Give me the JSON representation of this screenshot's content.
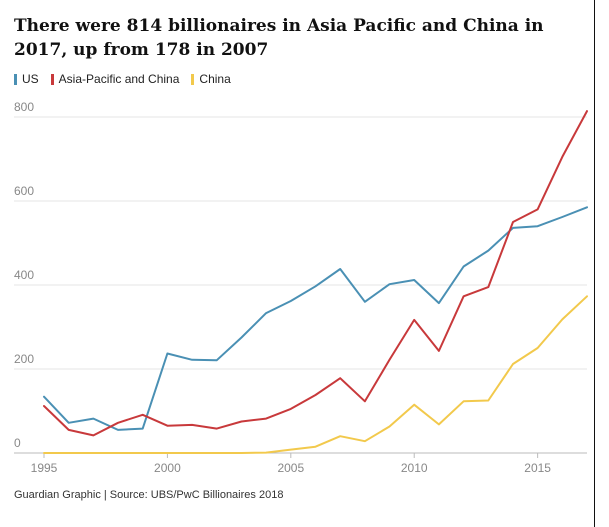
{
  "title": "There were 814 billionaires in Asia Pacific and China in 2017, up from 178 in 2007",
  "legend": [
    {
      "label": "US",
      "color": "#4a90b4"
    },
    {
      "label": "Asia-Pacific and China",
      "color": "#c8393b"
    },
    {
      "label": "China",
      "color": "#f2c94c"
    }
  ],
  "footer": "Guardian Graphic | Source: UBS/PwC Billionaires 2018",
  "chart_data": {
    "type": "line",
    "title": "There were 814 billionaires in Asia Pacific and China in 2017, up from 178 in 2007",
    "xlabel": "",
    "ylabel": "",
    "xlim": [
      1995,
      2017
    ],
    "ylim": [
      0,
      800
    ],
    "xticks": [
      1995,
      2000,
      2005,
      2010,
      2015
    ],
    "yticks": [
      0,
      200,
      400,
      600,
      800
    ],
    "grid": true,
    "legend_position": "top-left",
    "x": [
      1995,
      1996,
      1997,
      1998,
      1999,
      2000,
      2001,
      2002,
      2003,
      2004,
      2005,
      2006,
      2007,
      2008,
      2009,
      2010,
      2011,
      2012,
      2013,
      2014,
      2015,
      2016,
      2017
    ],
    "series": [
      {
        "name": "US",
        "color": "#4a90b4",
        "values": [
          134,
          72,
          82,
          55,
          58,
          237,
          222,
          221,
          275,
          333,
          362,
          397,
          438,
          360,
          402,
          412,
          357,
          444,
          482,
          536,
          540,
          562,
          585
        ]
      },
      {
        "name": "Asia-Pacific and China",
        "color": "#c8393b",
        "values": [
          112,
          55,
          42,
          72,
          91,
          65,
          67,
          58,
          75,
          82,
          105,
          138,
          178,
          123,
          222,
          317,
          243,
          373,
          395,
          550,
          580,
          705,
          814
        ]
      },
      {
        "name": "China",
        "color": "#f2c94c",
        "values": [
          0,
          0,
          0,
          0,
          0,
          0,
          0,
          0,
          0,
          1,
          8,
          15,
          40,
          28,
          63,
          115,
          68,
          123,
          125,
          212,
          250,
          318,
          373
        ]
      }
    ]
  }
}
